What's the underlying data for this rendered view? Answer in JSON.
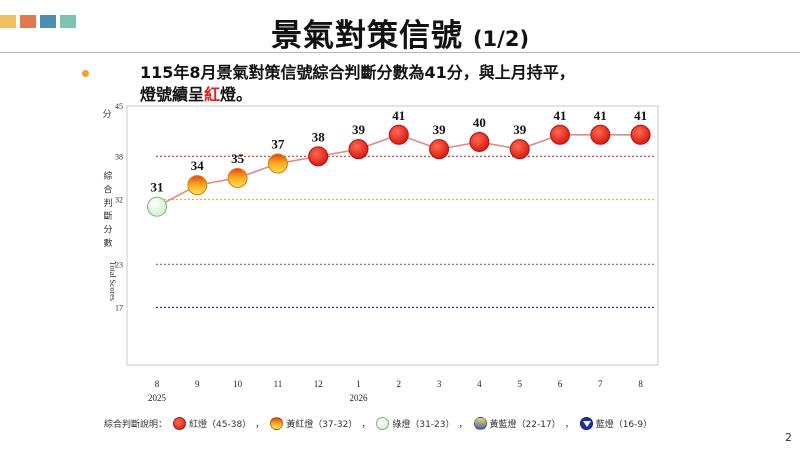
{
  "header": {
    "title": "景氣對策信號",
    "page": "(1/2)",
    "deco_colors": [
      "#f0c060",
      "#e07850",
      "#4a8fb0",
      "#7cc4b4"
    ]
  },
  "summary": {
    "line1": "115年8月景氣對策信號綜合判斷分數為41分，與上月持平，",
    "line2_prefix": "燈號續呈",
    "line2_highlight": "紅",
    "line2_suffix": "燈。"
  },
  "chart_data": {
    "type": "line",
    "x": [
      "8",
      "9",
      "10",
      "11",
      "12",
      "1",
      "2",
      "3",
      "4",
      "5",
      "6",
      "7",
      "8"
    ],
    "year_labels": [
      {
        "index": 0,
        "label": "2025"
      },
      {
        "index": 5,
        "label": "2026"
      }
    ],
    "values": [
      31,
      34,
      35,
      37,
      38,
      39,
      41,
      39,
      40,
      39,
      41,
      41,
      41
    ],
    "ylim": [
      9,
      45
    ],
    "yticks": [
      45,
      38,
      32,
      23,
      17
    ],
    "y_unit": "分",
    "y_label_cn": [
      "綜",
      "合",
      "判",
      "斷",
      "分",
      "數"
    ],
    "y_label_en": "Total Scores",
    "thresholds": [
      {
        "value": 38,
        "color": "#c0392b"
      },
      {
        "value": 32,
        "color": "#e0b030"
      },
      {
        "value": 23,
        "color": "#3a9a3a"
      },
      {
        "value": 17,
        "color": "#2c2c8c"
      }
    ],
    "line_color": "#e08a8a",
    "signal_colors": {
      "red": "#e8201a",
      "yellow_red": "#f2a020",
      "green": "#e4f4e0",
      "yellow_blue": "#c8c860",
      "blue": "#2030a0"
    },
    "grid": false
  },
  "legend": {
    "intro": "綜合判斷說明：",
    "separator": "，",
    "items": [
      {
        "label": "紅燈（45-38）",
        "kind": "red",
        "color": "#e8201a"
      },
      {
        "label": "黃紅燈（37-32）",
        "kind": "yellow-red",
        "color": "#f2a020"
      },
      {
        "label": "綠燈（31-23）",
        "kind": "green",
        "color": "#e4f4e0"
      },
      {
        "label": "黃藍燈（22-17）",
        "kind": "yellow-blue",
        "color": "#c8c860"
      },
      {
        "label": "藍燈（16-9）",
        "kind": "blue",
        "color": "#2030a0"
      }
    ]
  },
  "page_number": "2"
}
